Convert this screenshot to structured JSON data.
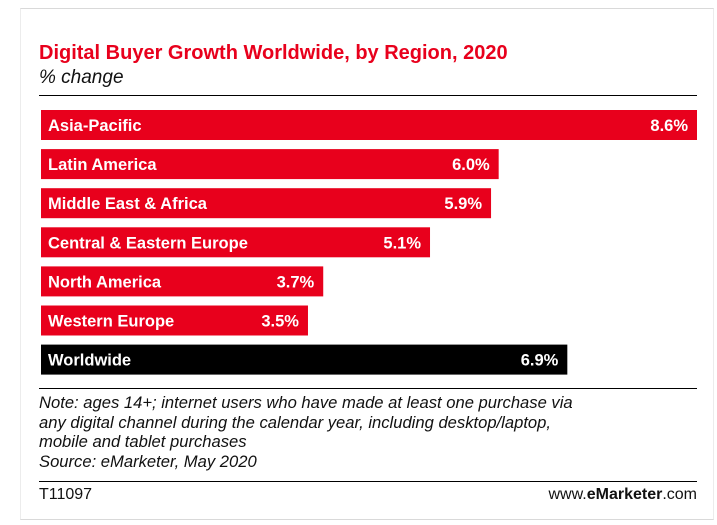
{
  "title": "Digital Buyer Growth Worldwide, by Region, 2020",
  "subtitle": "% change",
  "chart_data": {
    "type": "bar",
    "orientation": "horizontal",
    "title": "Digital Buyer Growth Worldwide, by Region, 2020",
    "subtitle": "% change",
    "xlabel": "",
    "ylabel": "",
    "unit": "%",
    "xlim": [
      0,
      8.6
    ],
    "grid": false,
    "legend": "none",
    "categories": [
      "Asia-Pacific",
      "Latin America",
      "Middle East & Africa",
      "Central & Eastern Europe",
      "North America",
      "Western Europe",
      "Worldwide"
    ],
    "values": [
      8.6,
      6.0,
      5.9,
      5.1,
      3.7,
      3.5,
      6.9
    ],
    "value_labels": [
      "8.6%",
      "6.0%",
      "5.9%",
      "5.1%",
      "3.7%",
      "3.5%",
      "6.9%"
    ],
    "colors": [
      "#e8001c",
      "#e8001c",
      "#e8001c",
      "#e8001c",
      "#e8001c",
      "#e8001c",
      "#000000"
    ]
  },
  "note": {
    "lines": [
      "Note: ages 14+; internet users who have made at least one purchase via",
      "any digital channel during the calendar year, including desktop/laptop,",
      "mobile and tablet purchases",
      "Source: eMarketer, May 2020"
    ]
  },
  "footer": {
    "chart_id": "T11097",
    "brand_prefix": "www.",
    "brand_highlight": "eMarketer",
    "brand_suffix": ".com"
  }
}
